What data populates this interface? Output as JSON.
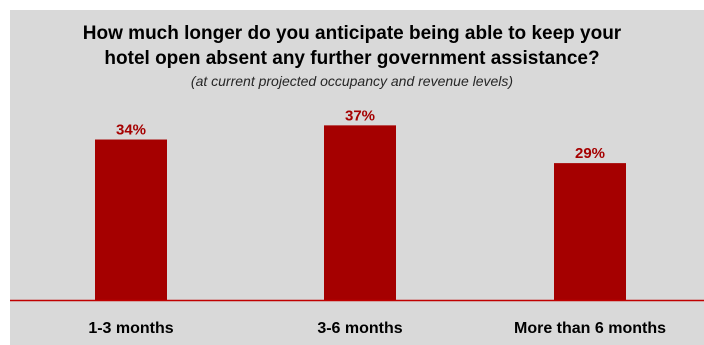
{
  "chart_data": {
    "type": "bar",
    "title_line1": "How much longer do you anticipate being able to keep your",
    "title_line2": "hotel open absent any further government assistance?",
    "subtitle": "(at current projected occupancy and revenue levels)",
    "categories": [
      "1-3 months",
      "3-6 months",
      "More than 6 months"
    ],
    "values": [
      34,
      37,
      29
    ],
    "value_labels": [
      "34%",
      "37%",
      "29%"
    ],
    "ylim": [
      0,
      40
    ],
    "grid": false,
    "legend": "none",
    "colors": {
      "bar": "#a50000",
      "label": "#a50000",
      "axis": "#c00000",
      "background": "#d9d9d9"
    }
  }
}
